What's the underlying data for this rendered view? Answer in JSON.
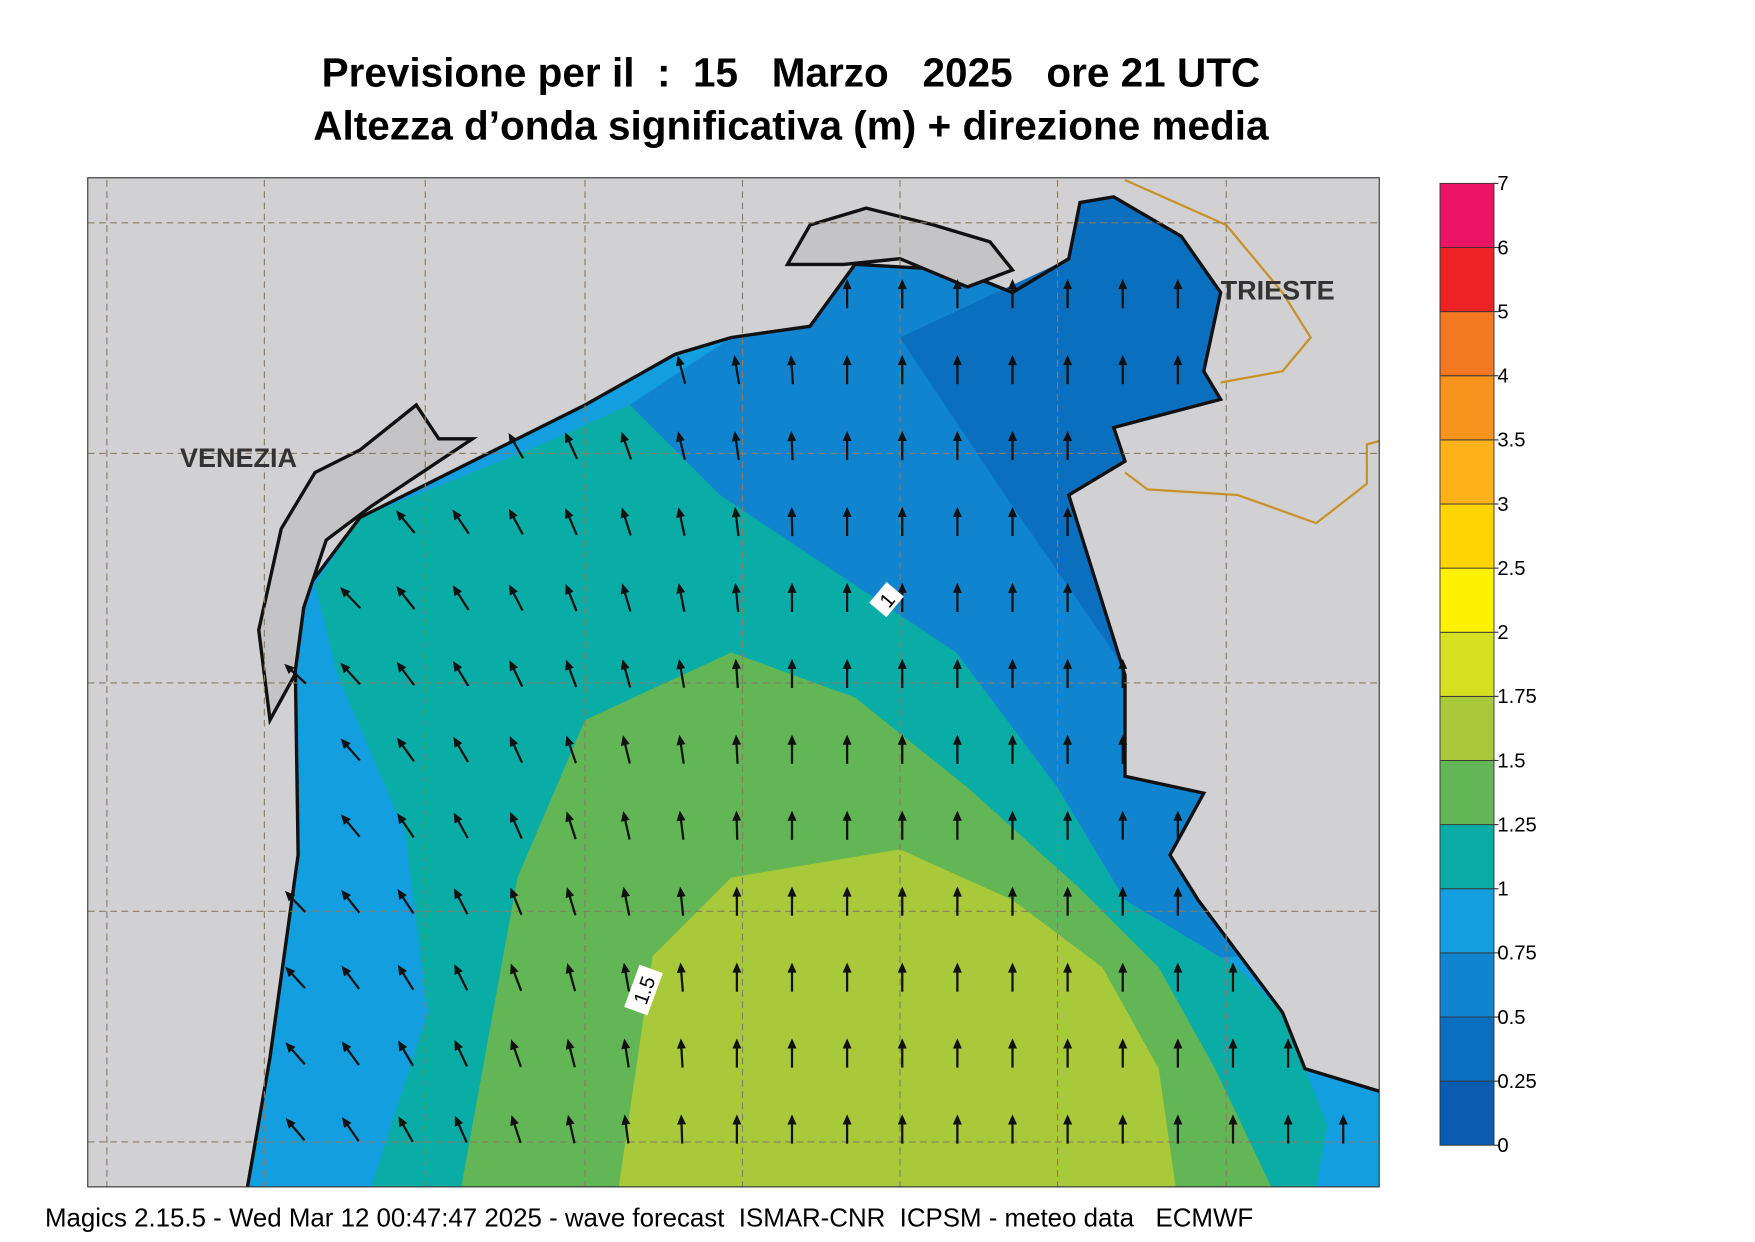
{
  "header": {
    "title": "Previsione per il  :  15   Marzo   2025   ore 21 UTC",
    "subtitle": "Altezza d’onda significativa (m) + direzione media"
  },
  "map": {
    "places": [
      "VENEZIA",
      "TRIESTE"
    ],
    "contour_labels": [
      "1",
      "1.5"
    ]
  },
  "colorbar": {
    "ticks": [
      0,
      0.25,
      0.5,
      0.75,
      1,
      1.25,
      1.5,
      1.75,
      2,
      2.5,
      3,
      3.5,
      4,
      5,
      6,
      7
    ],
    "colors": [
      "#0a5cb0",
      "#0b6fc0",
      "#1184d0",
      "#139ee0",
      "#0aada6",
      "#63b655",
      "#a7c93a",
      "#d5e020",
      "#fff200",
      "#ffd400",
      "#fdb21a",
      "#f7941d",
      "#f47721",
      "#ec2224",
      "#ec1464"
    ]
  },
  "footer": "Magics 2.15.5 - Wed Mar 12 00:47:47 2025 - wave forecast  ISMAR-CNR  ICPSM - meteo data   ECMWF"
}
